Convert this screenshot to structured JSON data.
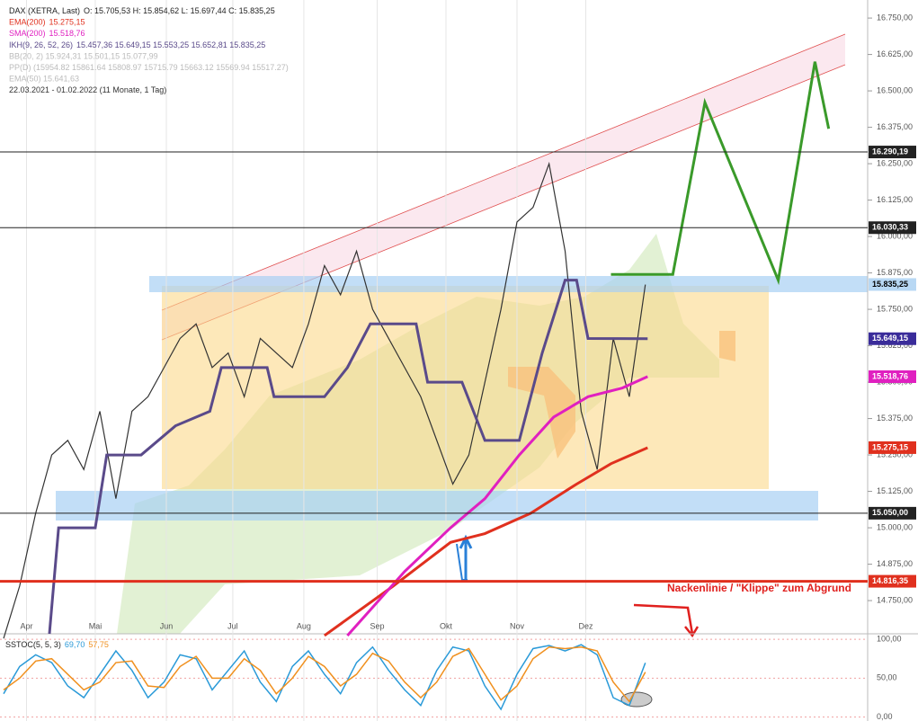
{
  "chart_data": {
    "type": "line",
    "title": "DAX (XETRA, Last)",
    "ohlc": "O: 15.705,53  H: 15.854,62  L: 15.697,44  C: 15.835,25",
    "date_range": "22.03.2021 - 01.02.2022  (11 Monate, 1 Tag)",
    "inactive_indicators": [
      "BB(20, 2)  15.924,31  15.501,15  15.077,99",
      "PP(D)  (15954.82  15861.64  15808.97  15715.79  15663.12  15569.94  15517.27)",
      "EMA(50)  15.641,63"
    ],
    "annotation": "Nackenlinie / \"Klippe\" zum Abgrund",
    "xlim": [
      0,
      377
    ],
    "xticks": [
      {
        "value": 10,
        "label": "Apr"
      },
      {
        "value": 40,
        "label": "Mai"
      },
      {
        "value": 71,
        "label": "Jun"
      },
      {
        "value": 100,
        "label": "Jul"
      },
      {
        "value": 131,
        "label": "Aug"
      },
      {
        "value": 163,
        "label": "Sep"
      },
      {
        "value": 193,
        "label": "Okt"
      },
      {
        "value": 224,
        "label": "Nov"
      },
      {
        "value": 254,
        "label": "Dez"
      }
    ],
    "ylim": [
      14636,
      16812
    ],
    "yticks": [
      {
        "value": 16750,
        "label": "16.750,00"
      },
      {
        "value": 16625,
        "label": "16.625,00"
      },
      {
        "value": 16500,
        "label": "16.500,00"
      },
      {
        "value": 16375,
        "label": "16.375,00"
      },
      {
        "value": 16250,
        "label": "16.250,00"
      },
      {
        "value": 16125,
        "label": "16.125,00"
      },
      {
        "value": 16000,
        "label": "16.000,00"
      },
      {
        "value": 15875,
        "label": "15.875,00"
      },
      {
        "value": 15750,
        "label": "15.750,00"
      },
      {
        "value": 15625,
        "label": "15.625,00"
      },
      {
        "value": 15500,
        "label": "15.500,00"
      },
      {
        "value": 15375,
        "label": "15.375,00"
      },
      {
        "value": 15250,
        "label": "15.250,00"
      },
      {
        "value": 15125,
        "label": "15.125,00"
      },
      {
        "value": 15000,
        "label": "15.000,00"
      },
      {
        "value": 14875,
        "label": "14.875,00"
      },
      {
        "value": 14750,
        "label": "14.750,00"
      }
    ],
    "series": [
      {
        "name": "DAX (XETRA, Last)",
        "color": "#333333",
        "x": [
          0,
          7,
          14,
          21,
          28,
          35,
          42,
          49,
          56,
          63,
          70,
          77,
          84,
          91,
          98,
          105,
          112,
          119,
          126,
          133,
          140,
          147,
          154,
          161,
          168,
          175,
          182,
          189,
          196,
          203,
          210,
          217,
          224,
          231,
          238,
          245,
          252,
          259,
          266,
          273,
          280
        ],
        "values": [
          14620,
          14800,
          15050,
          15250,
          15300,
          15200,
          15400,
          15100,
          15400,
          15450,
          15550,
          15650,
          15700,
          15550,
          15600,
          15450,
          15650,
          15600,
          15550,
          15700,
          15900,
          15800,
          15950,
          15750,
          15650,
          15550,
          15450,
          15300,
          15150,
          15250,
          15500,
          15750,
          16050,
          16100,
          16250,
          15950,
          15400,
          15200,
          15650,
          15450,
          15835
        ]
      },
      {
        "name": "EMA(200)",
        "legend_value": "15.275,15",
        "color": "#e0301e",
        "x": [
          140,
          170,
          195,
          210,
          230,
          250,
          265,
          281
        ],
        "values": [
          14630,
          14800,
          14950,
          14980,
          15050,
          15150,
          15220,
          15275
        ]
      },
      {
        "name": "SMA(200)",
        "legend_value": "15.518,76",
        "color": "#e020c0",
        "x": [
          150,
          175,
          195,
          210,
          225,
          240,
          255,
          270,
          281
        ],
        "values": [
          14630,
          14850,
          15000,
          15100,
          15250,
          15380,
          15450,
          15480,
          15519
        ]
      },
      {
        "name": "IKH(9, 26, 52, 26)",
        "legend_value": "15.457,36  15.649,15  15.553,25  15.652,81  15.835,25",
        "color": "#5a4a8a",
        "x": [
          20,
          24,
          40,
          45,
          60,
          75,
          90,
          95,
          115,
          118,
          140,
          150,
          160,
          180,
          185,
          200,
          210,
          225,
          235,
          245,
          250,
          255,
          281
        ],
        "values": [
          14636,
          15000,
          15000,
          15250,
          15250,
          15350,
          15400,
          15550,
          15550,
          15450,
          15450,
          15550,
          15700,
          15700,
          15500,
          15500,
          15300,
          15300,
          15600,
          15850,
          15850,
          15650,
          15649
        ]
      }
    ],
    "levels": [
      {
        "value": 16290.19,
        "label": "16.290,19",
        "color": "#222222",
        "line": true
      },
      {
        "value": 16030.33,
        "label": "16.030,33",
        "color": "#222222",
        "line": true
      },
      {
        "value": 15835.25,
        "label": "15.835,25",
        "color": "#b8d8f4",
        "line": false
      },
      {
        "value": 15649.15,
        "label": "15.649,15",
        "color": "#3a2c9a",
        "line": false
      },
      {
        "value": 15518.76,
        "label": "15.518,76",
        "color": "#e020c0",
        "line": false
      },
      {
        "value": 15275.15,
        "label": "15.275,15",
        "color": "#e0301e",
        "line": false
      },
      {
        "value": 15050,
        "label": "15.050,00",
        "color": "#222222",
        "line": true
      },
      {
        "value": 14816.35,
        "label": "14.816,35",
        "color": "#e0301e",
        "line": true
      }
    ],
    "forecast": {
      "color": "#3a9a2a",
      "x": [
        265,
        292,
        306,
        338,
        354,
        360
      ],
      "values": [
        15870,
        15870,
        16460,
        15850,
        16600,
        16370
      ]
    },
    "stochastic": {
      "title": "SSTOC(5, 5, 3)",
      "ylim": [
        -5,
        107
      ],
      "yticks": [
        {
          "value": 100,
          "label": "100,00"
        },
        {
          "value": 50,
          "label": "50,00"
        },
        {
          "value": 0,
          "label": "0,00"
        }
      ],
      "series": [
        {
          "color": "#2a9ad8",
          "value_label": "69,70",
          "x": [
            0,
            7,
            14,
            21,
            28,
            35,
            42,
            49,
            56,
            63,
            70,
            77,
            84,
            91,
            98,
            105,
            112,
            119,
            126,
            133,
            140,
            147,
            154,
            161,
            168,
            175,
            182,
            189,
            196,
            203,
            210,
            217,
            224,
            231,
            238,
            245,
            252,
            259,
            266,
            273,
            280
          ],
          "values": [
            30,
            65,
            80,
            70,
            40,
            25,
            55,
            85,
            60,
            25,
            45,
            80,
            75,
            35,
            60,
            85,
            45,
            20,
            65,
            85,
            55,
            30,
            70,
            90,
            60,
            35,
            15,
            60,
            90,
            85,
            40,
            10,
            55,
            88,
            92,
            85,
            93,
            80,
            25,
            15,
            69.7
          ]
        },
        {
          "color": "#f0901e",
          "value_label": "57,75",
          "x": [
            0,
            7,
            14,
            21,
            28,
            35,
            42,
            49,
            56,
            63,
            70,
            77,
            84,
            91,
            98,
            105,
            112,
            119,
            126,
            133,
            140,
            147,
            154,
            161,
            168,
            175,
            182,
            189,
            196,
            203,
            210,
            217,
            224,
            231,
            238,
            245,
            252,
            259,
            266,
            273,
            280
          ],
          "values": [
            35,
            50,
            72,
            75,
            55,
            35,
            45,
            70,
            72,
            40,
            38,
            65,
            78,
            50,
            50,
            75,
            60,
            30,
            50,
            78,
            65,
            40,
            55,
            82,
            72,
            45,
            25,
            45,
            78,
            88,
            55,
            22,
            40,
            75,
            90,
            88,
            90,
            85,
            45,
            20,
            57.75
          ]
        }
      ]
    }
  }
}
